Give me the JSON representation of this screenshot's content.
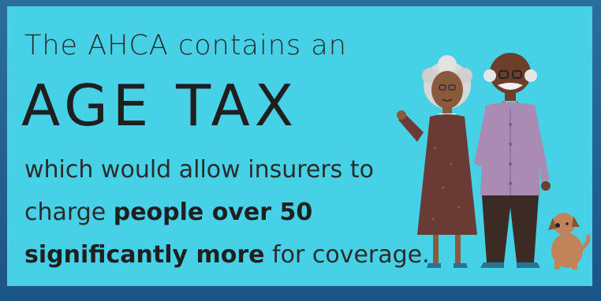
{
  "headline": {
    "line1": "The AHCA contains an",
    "line2": "AGE TAX",
    "line3": "which would allow insurers to",
    "line4_plain": "charge ",
    "line4_bold": "people over 50",
    "line5_bold": "significantly more",
    "line5_plain": " for coverage."
  },
  "colors": {
    "background": "#47d1e6",
    "frame": "#1d5f8f",
    "text": "#2b2b2b"
  },
  "illustration": {
    "subjects": [
      "grandmother-figure",
      "grandfather-figure",
      "dog-figure"
    ]
  }
}
